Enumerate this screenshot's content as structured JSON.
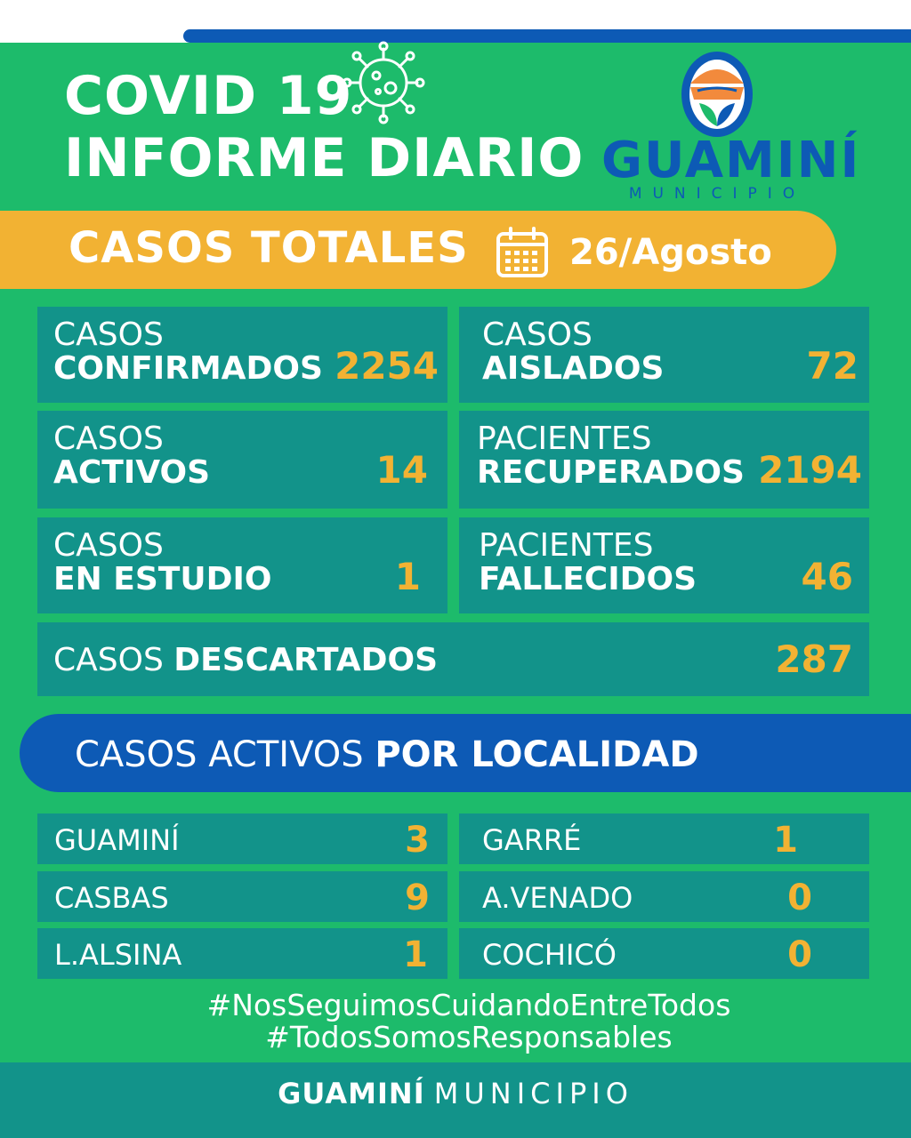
{
  "header": {
    "title_line1": "COVID 19",
    "title_line2": "INFORME DIARIO",
    "virus_icon": "virus-icon"
  },
  "logo": {
    "name": "GUAMINÍ",
    "subtitle": "MUNICIPIO"
  },
  "banner": {
    "title": "CASOS TOTALES",
    "calendar_icon": "calendar-icon",
    "date": "26/Agosto"
  },
  "stats": {
    "confirmados": {
      "line1": "CASOS",
      "line2": "CONFIRMADOS",
      "value": "2254"
    },
    "aislados": {
      "line1": "CASOS",
      "line2": "AISLADOS",
      "value": "72"
    },
    "activos": {
      "line1": "CASOS",
      "line2": "ACTIVOS",
      "value": "14"
    },
    "recuperados": {
      "line1": "PACIENTES",
      "line2": "RECUPERADOS",
      "value": "2194"
    },
    "estudio": {
      "line1": "CASOS",
      "line2": "EN ESTUDIO",
      "value": "1"
    },
    "fallecidos": {
      "line1": "PACIENTES",
      "line2": "FALLECIDOS",
      "value": "46"
    },
    "descartados": {
      "light": "CASOS",
      "bold": "DESCARTADOS",
      "value": "287"
    }
  },
  "locality_banner": {
    "light": "CASOS ACTIVOS",
    "bold": "POR LOCALIDAD"
  },
  "localities": [
    {
      "name": "GUAMINÍ",
      "value": "3"
    },
    {
      "name": "GARRÉ",
      "value": "1"
    },
    {
      "name": "CASBAS",
      "value": "9"
    },
    {
      "name": "A.VENADO",
      "value": "0"
    },
    {
      "name": "L.ALSINA",
      "value": "1"
    },
    {
      "name": "COCHICÓ",
      "value": "0"
    }
  ],
  "hashtags": [
    "#NosSeguimosCuidandoEntreTodos",
    "#TodosSomosResponsables"
  ],
  "footer": {
    "bold": "GUAMINÍ",
    "light": "MUNICIPIO"
  },
  "colors": {
    "green": "#1dbb6b",
    "teal": "#12938a",
    "yellow": "#f2b233",
    "blue": "#0d5ab5"
  }
}
